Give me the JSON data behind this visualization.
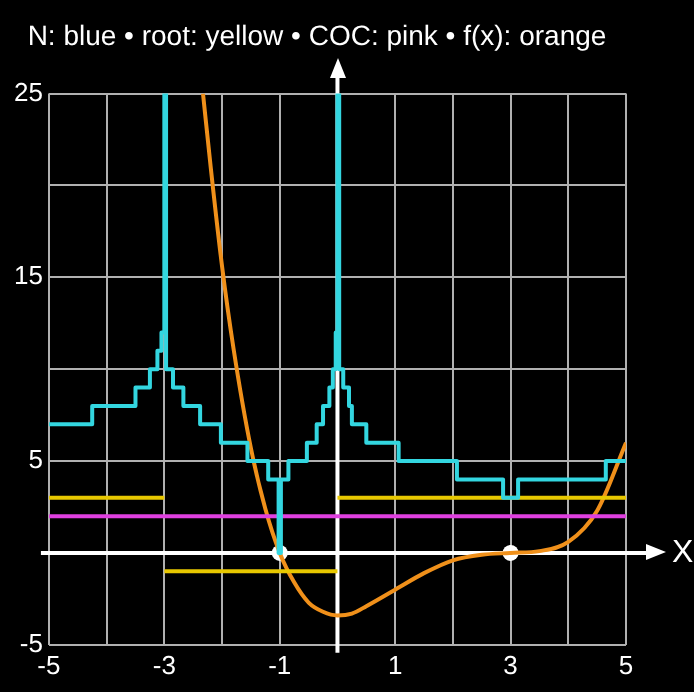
{
  "chart_data": {
    "type": "line",
    "title": "N: blue • root: yellow • COC: pink • f(x): orange",
    "xlabel": "X",
    "xlim": [
      -5,
      5
    ],
    "ylim": [
      -5,
      25
    ],
    "xticks": [
      -5,
      {
        "value": -4,
        "label": null
      },
      -3,
      {
        "value": -2,
        "label": null
      },
      -1,
      {
        "value": 0,
        "label": null
      },
      1,
      {
        "value": 2,
        "label": null
      },
      3,
      {
        "value": 4,
        "label": null
      },
      5
    ],
    "yticks": [
      -5,
      {
        "value": 0,
        "label": null
      },
      5,
      {
        "value": 10,
        "label": null
      },
      15,
      {
        "value": 20,
        "label": null
      },
      25
    ],
    "grid": true,
    "legend": false,
    "series": [
      {
        "type": "step",
        "color": "#33d6e0",
        "x": [
          -5,
          -4.25,
          -3.5,
          -3.25,
          -3.12,
          -3.05,
          -3,
          -2.97,
          -2.85,
          -2.67,
          -2.38,
          -2.02,
          -1.56,
          -1.2,
          -1.02,
          -0.98,
          -0.85,
          -0.53,
          -0.36,
          -0.25,
          -0.14,
          -0.08,
          -0.03,
          0,
          0.03,
          0.1,
          0.2,
          0.25,
          0.5,
          1.06,
          2.07,
          2.87,
          3.13,
          4.65,
          5
        ],
        "values": [
          7,
          8,
          9,
          10,
          11,
          12,
          25,
          10,
          9,
          8,
          7,
          6,
          5,
          4,
          0,
          4,
          5,
          6,
          7,
          8,
          9,
          10,
          12,
          25,
          10,
          9,
          8,
          7,
          6,
          5,
          4,
          3,
          4,
          5,
          5
        ]
      },
      {
        "type": "line",
        "color": "#e8c800",
        "x": [
          -5,
          -3
        ],
        "values": [
          3,
          3
        ]
      },
      {
        "type": "line",
        "color": "#e8c800",
        "x": [
          -3,
          0
        ],
        "values": [
          -1,
          -1
        ]
      },
      {
        "type": "line",
        "color": "#e8c800",
        "x": [
          0,
          5
        ],
        "values": [
          3,
          3
        ]
      },
      {
        "type": "line",
        "color": "#e040e0",
        "x": [
          -5,
          5
        ],
        "values": [
          2,
          2
        ]
      },
      {
        "type": "line",
        "color": "#f0901a",
        "x": [
          -2.33,
          -2.2,
          -2,
          -1.8,
          -1.5,
          -1.25,
          -1,
          -0.75,
          -0.5,
          -0.25,
          0,
          0.25,
          0.5,
          1,
          1.5,
          2,
          2.5,
          3,
          3.5,
          4,
          4.5,
          5
        ],
        "values": [
          25,
          21.1,
          15.6,
          11.1,
          5.7,
          2.4,
          0,
          -1.6,
          -2.7,
          -3.2,
          -3.4,
          -3.3,
          -2.9,
          -2,
          -1.1,
          -0.4,
          -0.1,
          0,
          0.1,
          0.6,
          2.3,
          6
        ]
      },
      {
        "type": "scatter",
        "color": "#ffffff",
        "x": [
          -1,
          3
        ],
        "values": [
          0,
          0
        ]
      }
    ]
  }
}
